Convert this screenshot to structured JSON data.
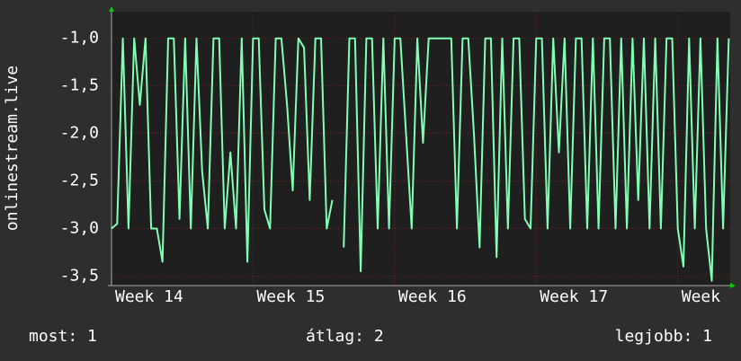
{
  "chart_data": {
    "type": "line",
    "y_label": "onlinestream.live",
    "xlim": [
      14,
      18.37
    ],
    "xticks": [
      {
        "value": 14,
        "label": "Week 14"
      },
      {
        "value": 15,
        "label": "Week 15"
      },
      {
        "value": 16,
        "label": "Week 16"
      },
      {
        "value": 17,
        "label": "Week 17"
      },
      {
        "value": 18,
        "label": "Week"
      }
    ],
    "ylim": [
      -3.6,
      -0.72
    ],
    "yticks": [
      {
        "value": -1.0,
        "label": "-1,0"
      },
      {
        "value": -1.5,
        "label": "-1,5"
      },
      {
        "value": -2.0,
        "label": "-2,0"
      },
      {
        "value": -2.5,
        "label": "-2,5"
      },
      {
        "value": -3.0,
        "label": "-3,0"
      },
      {
        "value": -3.5,
        "label": "-3,5"
      }
    ],
    "grid": true,
    "x": [
      14.0,
      14.04,
      14.08,
      14.12,
      14.16,
      14.2,
      14.24,
      14.28,
      14.32,
      14.36,
      14.4,
      14.44,
      14.48,
      14.52,
      14.56,
      14.6,
      14.64,
      14.68,
      14.72,
      14.76,
      14.8,
      14.84,
      14.88,
      14.92,
      14.96,
      15.0,
      15.04,
      15.08,
      15.12,
      15.16,
      15.2,
      15.24,
      15.28,
      15.32,
      15.36,
      15.4,
      15.44,
      15.48,
      15.52,
      15.56,
      15.6,
      15.64,
      15.68,
      15.72,
      15.76,
      15.8,
      15.84,
      15.88,
      15.92,
      15.96,
      16.0,
      16.04,
      16.08,
      16.12,
      16.16,
      16.2,
      16.24,
      16.28,
      16.32,
      16.36,
      16.4,
      16.44,
      16.48,
      16.52,
      16.56,
      16.6,
      16.64,
      16.68,
      16.72,
      16.76,
      16.8,
      16.84,
      16.88,
      16.92,
      16.96,
      17.0,
      17.04,
      17.08,
      17.12,
      17.16,
      17.2,
      17.24,
      17.28,
      17.32,
      17.36,
      17.4,
      17.44,
      17.48,
      17.52,
      17.56,
      17.6,
      17.64,
      17.68,
      17.72,
      17.76,
      17.8,
      17.84,
      17.88,
      17.92,
      17.96,
      18.0,
      18.04,
      18.08,
      18.12,
      18.16,
      18.2,
      18.24,
      18.28,
      18.32,
      18.36
    ],
    "series": [
      {
        "name": "onlinestream.live",
        "color": "#80ffb4",
        "values": [
          -3.0,
          -2.95,
          -1.0,
          -3.0,
          -1.0,
          -1.7,
          -1.0,
          -3.0,
          -3.0,
          -3.35,
          -1.0,
          -1.0,
          -2.9,
          -1.0,
          -3.0,
          -1.0,
          -2.4,
          -3.0,
          -1.0,
          -1.0,
          -3.0,
          -2.2,
          -3.0,
          -1.0,
          -3.35,
          -1.0,
          -1.0,
          -2.8,
          -3.0,
          -1.0,
          -1.0,
          -1.7,
          -2.6,
          -1.0,
          -1.1,
          -2.7,
          -1.0,
          -1.0,
          -3.0,
          -2.7,
          null,
          -3.2,
          -1.0,
          -1.0,
          -3.45,
          -1.0,
          -1.0,
          -3.0,
          -1.0,
          -3.0,
          -1.0,
          -1.0,
          -2.0,
          -3.0,
          -1.0,
          -2.1,
          -1.0,
          -1.0,
          -1.0,
          -1.0,
          -1.0,
          -3.0,
          -1.0,
          -1.0,
          -2.0,
          -3.2,
          -1.0,
          -1.0,
          -3.3,
          -1.0,
          -3.0,
          -1.0,
          -1.0,
          -2.9,
          -3.0,
          -1.0,
          -1.0,
          -3.0,
          -1.0,
          -2.2,
          -1.0,
          -3.0,
          -1.0,
          -1.0,
          -3.0,
          -1.0,
          -3.0,
          -1.0,
          -1.0,
          -3.0,
          -1.0,
          -3.0,
          -1.0,
          -2.7,
          -1.0,
          -3.0,
          -1.0,
          -3.0,
          -1.0,
          -1.0,
          -3.0,
          -3.4,
          -1.0,
          -3.0,
          -1.0,
          -3.0,
          -3.55,
          -1.0,
          -3.0,
          -1.0
        ]
      }
    ],
    "legend_texts": [
      "most: 1",
      "átlag: 2",
      "legjobb: 1"
    ]
  }
}
